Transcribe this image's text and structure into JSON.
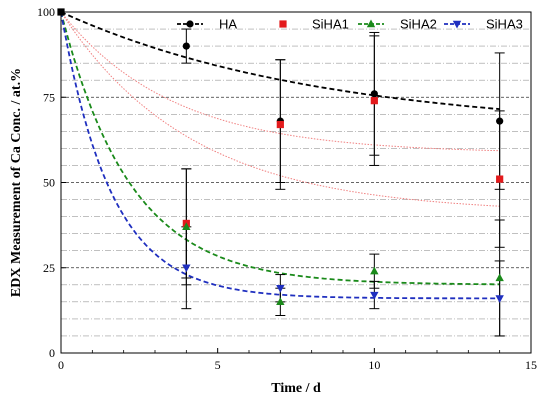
{
  "chart_data": {
    "type": "scatter",
    "xlabel": "Time / d",
    "ylabel": "EDX Measurement of Ca Conc. / at.%",
    "xlim": [
      0,
      15
    ],
    "ylim": [
      0,
      100
    ],
    "x_ticks": [
      0,
      5,
      10,
      15
    ],
    "y_ticks": [
      0,
      25,
      50,
      75,
      100
    ],
    "grid": "horizontal: dashed black at major ticks, dash-dot gray at 5-unit steps",
    "legend_position": "top-right",
    "series": [
      {
        "name": "HA",
        "color": "#000000",
        "marker": "circle",
        "points": [
          {
            "x": 0,
            "y": 100
          },
          {
            "x": 4,
            "y": 90,
            "err": 5
          },
          {
            "x": 7,
            "y": 68,
            "err": 18
          },
          {
            "x": 10,
            "y": 76,
            "err": 18
          },
          {
            "x": 14,
            "y": 68,
            "err": 20
          }
        ],
        "fit": {
          "plateau": 65,
          "k": 0.12
        }
      },
      {
        "name": "SiHA1",
        "color": "#e31a1c",
        "marker": "square",
        "points": [
          {
            "x": 0,
            "y": 100
          },
          {
            "x": 4,
            "y": 38,
            "err": 16
          },
          {
            "x": 7,
            "y": 67,
            "err": 19
          },
          {
            "x": 10,
            "y": 74,
            "err": 19
          },
          {
            "x": 14,
            "y": 51,
            "err": 20
          }
        ],
        "fit_upper": {
          "plateau": 58.5,
          "k": 0.28
        },
        "fit_lower": {
          "plateau": 41,
          "k": 0.24
        }
      },
      {
        "name": "SiHA2",
        "color": "#1a8a1a",
        "marker": "triangle-up",
        "points": [
          {
            "x": 0,
            "y": 100
          },
          {
            "x": 4,
            "y": 37,
            "err": 17
          },
          {
            "x": 7,
            "y": 15,
            "err": 4
          },
          {
            "x": 10,
            "y": 24,
            "err": 5
          },
          {
            "x": 14,
            "y": 22,
            "err": 17
          }
        ],
        "fit": {
          "plateau": 20,
          "k": 0.45
        }
      },
      {
        "name": "SiHA3",
        "color": "#1f2fbf",
        "marker": "triangle-down",
        "points": [
          {
            "x": 0,
            "y": 100
          },
          {
            "x": 4,
            "y": 25,
            "err": 12
          },
          {
            "x": 7,
            "y": 19,
            "err": 4
          },
          {
            "x": 10,
            "y": 17,
            "err": 4
          },
          {
            "x": 14,
            "y": 16,
            "err": 11
          }
        ],
        "fit": {
          "plateau": 16,
          "k": 0.62
        }
      }
    ]
  }
}
